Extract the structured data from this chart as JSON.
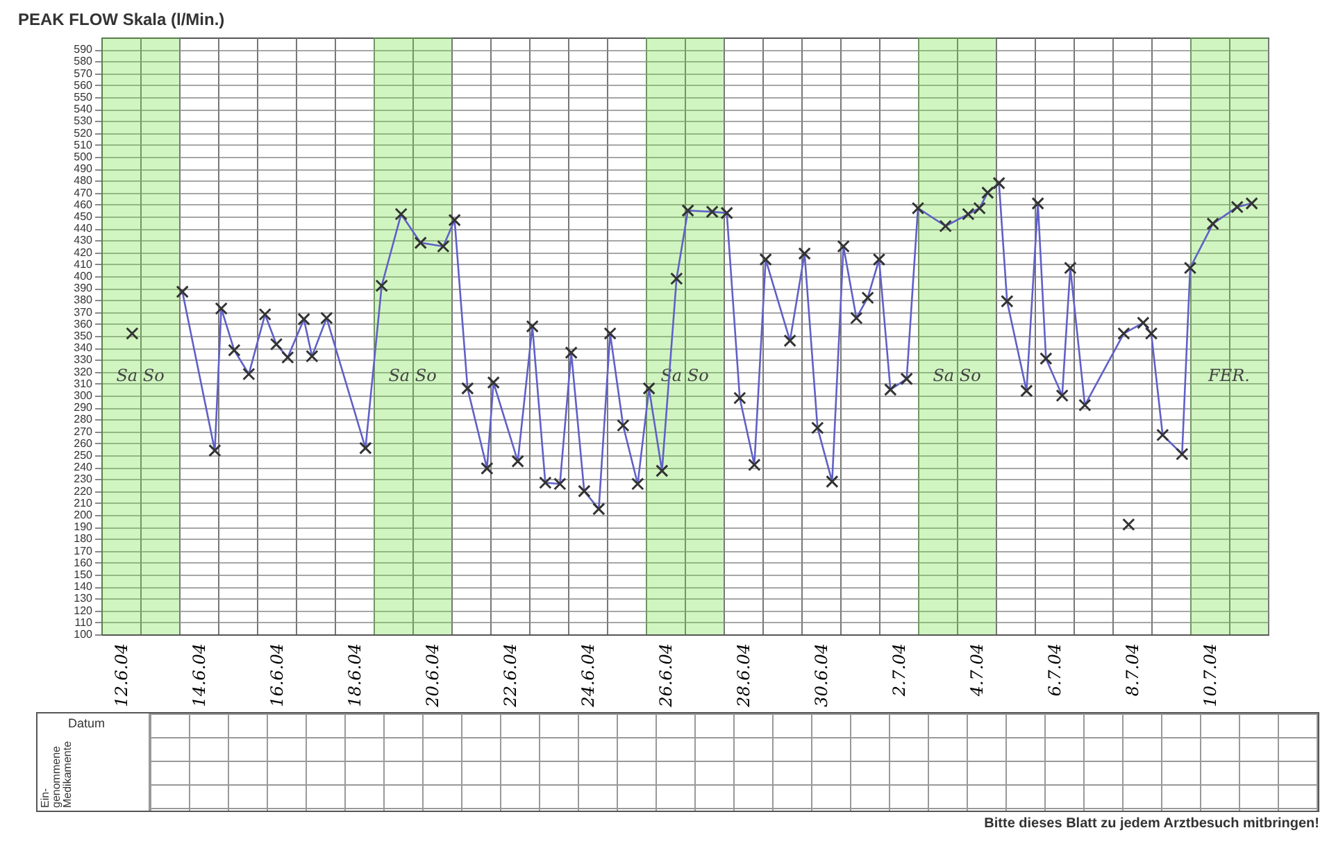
{
  "chart_data": {
    "type": "line",
    "title": "PEAK FLOW Skala (l/Min.)",
    "xlim": [
      "--06-12",
      "--07-12"
    ],
    "ylim": [
      100,
      600
    ],
    "xticks": [
      {
        "value": "--06-12",
        "label": null
      },
      {
        "value": "--06-12T12:00",
        "label": "12.6.04"
      },
      {
        "value": "--06-13",
        "label": null
      },
      {
        "value": "--06-14",
        "label": null
      },
      {
        "value": "--06-14T12:00",
        "label": "14.6.04"
      },
      {
        "value": "--06-15",
        "label": null
      },
      {
        "value": "--06-16",
        "label": null
      },
      {
        "value": "--06-16T12:00",
        "label": "16.6.04"
      },
      {
        "value": "--06-17",
        "label": null
      },
      {
        "value": "--06-18",
        "label": null
      },
      {
        "value": "--06-18T12:00",
        "label": "18.6.04"
      },
      {
        "value": "--06-19",
        "label": null
      },
      {
        "value": "--06-20",
        "label": null
      },
      {
        "value": "--06-20T12:00",
        "label": "20.6.04"
      },
      {
        "value": "--06-21",
        "label": null
      },
      {
        "value": "--06-22",
        "label": null
      },
      {
        "value": "--06-22T12:00",
        "label": "22.6.04"
      },
      {
        "value": "--06-23",
        "label": null
      },
      {
        "value": "--06-24",
        "label": null
      },
      {
        "value": "--06-24T12:00",
        "label": "24.6.04"
      },
      {
        "value": "--06-25",
        "label": null
      },
      {
        "value": "--06-26",
        "label": null
      },
      {
        "value": "--06-26T12:00",
        "label": "26.6.04"
      },
      {
        "value": "--06-27",
        "label": null
      },
      {
        "value": "--06-28",
        "label": null
      },
      {
        "value": "--06-28T12:00",
        "label": "28.6.04"
      },
      {
        "value": "--06-29",
        "label": null
      },
      {
        "value": "--06-30",
        "label": null
      },
      {
        "value": "--06-30T12:00",
        "label": "30.6.04"
      },
      {
        "value": "--07-01",
        "label": null
      },
      {
        "value": "--07-02",
        "label": null
      },
      {
        "value": "--07-02T12:00",
        "label": "2.7.04"
      },
      {
        "value": "--07-03",
        "label": null
      },
      {
        "value": "--07-04",
        "label": null
      },
      {
        "value": "--07-04T12:00",
        "label": "4.7.04"
      },
      {
        "value": "--07-05",
        "label": null
      },
      {
        "value": "--07-06",
        "label": null
      },
      {
        "value": "--07-06T12:00",
        "label": "6.7.04"
      },
      {
        "value": "--07-07",
        "label": null
      },
      {
        "value": "--07-08",
        "label": null
      },
      {
        "value": "--07-08T12:00",
        "label": "8.7.04"
      },
      {
        "value": "--07-09",
        "label": null
      },
      {
        "value": "--07-10",
        "label": null
      },
      {
        "value": "--07-10T12:00",
        "label": "10.7.04"
      },
      {
        "value": "--07-11",
        "label": null
      },
      {
        "value": "--07-12",
        "label": null
      }
    ],
    "yticks": [
      100,
      110,
      120,
      130,
      140,
      150,
      160,
      170,
      180,
      190,
      200,
      210,
      220,
      230,
      240,
      250,
      260,
      270,
      280,
      290,
      300,
      310,
      320,
      330,
      340,
      350,
      360,
      370,
      380,
      390,
      400,
      410,
      420,
      430,
      440,
      450,
      460,
      470,
      480,
      490,
      500,
      510,
      520,
      530,
      540,
      550,
      560,
      570,
      580,
      590
    ],
    "grid": true,
    "marker": "cross",
    "line_style": "solid",
    "series": [
      {
        "color": "#6060c8",
        "x": [
          "--06-14T02:00",
          "--06-14T22:00",
          "--06-15T02:00",
          "--06-15T10:00",
          "--06-15T19:00",
          "--06-16T05:00",
          "--06-16T12:00",
          "--06-16T19:00",
          "--06-17T05:00",
          "--06-17T10:00",
          "--06-17T19:00",
          "--06-18T19:00",
          "--06-19T05:00",
          "--06-19T17:00",
          "--06-20T05:00",
          "--06-20T19:00",
          "--06-21T02:00",
          "--06-21T10:00",
          "--06-21T22:00",
          "--06-22T02:00",
          "--06-22T17:00",
          "--06-23T02:00",
          "--06-23T10:00",
          "--06-23T19:00",
          "--06-24T02:00",
          "--06-24T10:00",
          "--06-24T19:00",
          "--06-25T02:00",
          "--06-25T10:00",
          "--06-25T19:00",
          "--06-26T02:00",
          "--06-26T10:00",
          "--06-26T19:00",
          "--06-27T02:00",
          "--06-27T17:00",
          "--06-28T02:00",
          "--06-28T10:00",
          "--06-28T19:00",
          "--06-29T02:00",
          "--06-29T17:00",
          "--06-30T02:00",
          "--06-30T10:00",
          "--06-30T19:00",
          "--07-01T02:00",
          "--07-01T10:00",
          "--07-01T17:00",
          "--07-02T00:00",
          "--07-02T07:00",
          "--07-02T17:00",
          "--07-03T00:00",
          "--07-03T17:00",
          "--07-04T07:00",
          "--07-04T14:00",
          "--07-04T19:00",
          "--07-05T02:00",
          "--07-05T07:00",
          "--07-05T19:00",
          "--07-06T02:00",
          "--07-06T07:00",
          "--07-06T17:00",
          "--07-06T22:00",
          "--07-07T07:00",
          "--07-08T07:00",
          "--07-08T19:00",
          "--07-09T00:00",
          "--07-09T07:00",
          "--07-09T19:00",
          "--07-10T00:00",
          "--07-10T14:00",
          "--07-11T05:00",
          "--07-11T14:00"
        ],
        "values": [
          387,
          254,
          373,
          338,
          318,
          368,
          343,
          332,
          364,
          333,
          365,
          256,
          392,
          452,
          428,
          425,
          447,
          306,
          239,
          311,
          245,
          358,
          227,
          226,
          336,
          220,
          205,
          352,
          275,
          226,
          306,
          237,
          398,
          455,
          454,
          453,
          298,
          242,
          414,
          346,
          419,
          273,
          228,
          425,
          365,
          382,
          414,
          305,
          314,
          457,
          442,
          452,
          457,
          470,
          478,
          379,
          304,
          461,
          331,
          300,
          407,
          292,
          352,
          361,
          352,
          267,
          251,
          407,
          444,
          458,
          461
        ]
      },
      {
        "type": "scatter",
        "color": "#333333",
        "x": [
          "--06-12T19:00",
          "--07-08T10:00"
        ],
        "values": [
          352,
          192
        ]
      }
    ],
    "bands": [
      {
        "axis": "x",
        "from": "--06-12",
        "to": "--06-14",
        "label": "Sa So",
        "color": "#66dd33"
      },
      {
        "axis": "x",
        "from": "--06-19",
        "to": "--06-21",
        "label": "Sa So",
        "color": "#66dd33"
      },
      {
        "axis": "x",
        "from": "--06-26",
        "to": "--06-28",
        "label": "Sa So",
        "color": "#66dd33"
      },
      {
        "axis": "x",
        "from": "--07-03",
        "to": "--07-05",
        "label": "Sa So",
        "color": "#66dd33"
      },
      {
        "axis": "x",
        "from": "--07-10",
        "to": "--07-12",
        "label": "FER.",
        "color": "#66dd33"
      }
    ],
    "annotations": [
      "Datum",
      "Ein-\ngenommene\nMedikamente",
      "Bitte dieses Blatt zu jedem Arztbesuch mitbringen!"
    ]
  }
}
